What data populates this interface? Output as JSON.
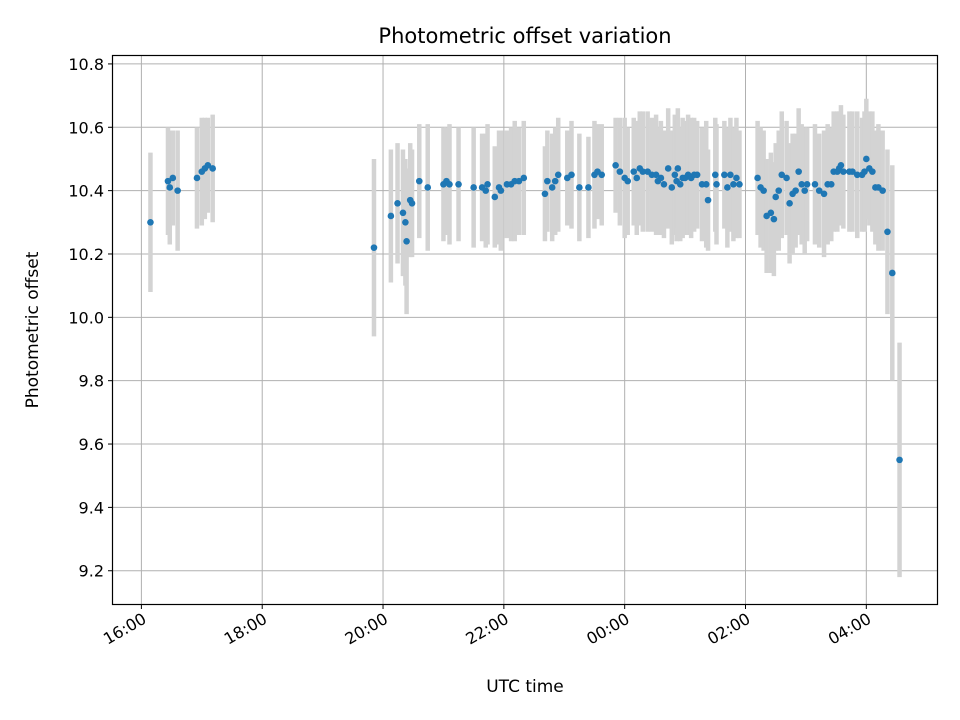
{
  "chart_data": {
    "type": "scatter",
    "title": "Photometric offset variation",
    "xlabel": "UTC time",
    "ylabel": "Photometric offset",
    "x_unit": "hours",
    "x_ticks": [
      {
        "value": 16,
        "label": "16:00"
      },
      {
        "value": 18,
        "label": "18:00"
      },
      {
        "value": 20,
        "label": "20:00"
      },
      {
        "value": 22,
        "label": "22:00"
      },
      {
        "value": 24,
        "label": "00:00"
      },
      {
        "value": 26,
        "label": "02:00"
      },
      {
        "value": 28,
        "label": "04:00"
      }
    ],
    "y_ticks": [
      "9.2",
      "9.4",
      "9.6",
      "9.8",
      "10.0",
      "10.2",
      "10.4",
      "10.6",
      "10.8"
    ],
    "xlim": [
      15.53,
      29.17
    ],
    "ylim": [
      9.095,
      10.825
    ],
    "grid": true,
    "colors": {
      "point": "#1f77b4",
      "errorbar": "#d3d3d3",
      "grid": "#b0b0b0"
    },
    "points": [
      [
        16.15,
        10.3,
        0.22
      ],
      [
        16.44,
        10.43,
        0.17
      ],
      [
        16.47,
        10.41,
        0.18
      ],
      [
        16.52,
        10.44,
        0.15
      ],
      [
        16.6,
        10.4,
        0.19
      ],
      [
        16.92,
        10.44,
        0.16
      ],
      [
        17.0,
        10.46,
        0.17
      ],
      [
        17.05,
        10.47,
        0.16
      ],
      [
        17.1,
        10.48,
        0.15
      ],
      [
        17.18,
        10.47,
        0.17
      ],
      [
        19.85,
        10.22,
        0.28
      ],
      [
        20.13,
        10.32,
        0.21
      ],
      [
        20.24,
        10.36,
        0.19
      ],
      [
        20.33,
        10.33,
        0.2
      ],
      [
        20.37,
        10.3,
        0.2
      ],
      [
        20.39,
        10.24,
        0.23
      ],
      [
        20.45,
        10.37,
        0.18
      ],
      [
        20.48,
        10.36,
        0.17
      ],
      [
        20.6,
        10.43,
        0.18
      ],
      [
        20.74,
        10.41,
        0.2
      ],
      [
        21.0,
        10.42,
        0.18
      ],
      [
        21.05,
        10.43,
        0.17
      ],
      [
        21.1,
        10.42,
        0.19
      ],
      [
        21.25,
        10.42,
        0.18
      ],
      [
        21.5,
        10.41,
        0.19
      ],
      [
        21.64,
        10.41,
        0.17
      ],
      [
        21.7,
        10.4,
        0.18
      ],
      [
        21.73,
        10.42,
        0.19
      ],
      [
        21.85,
        10.38,
        0.16
      ],
      [
        21.92,
        10.41,
        0.18
      ],
      [
        21.95,
        10.4,
        0.19
      ],
      [
        22.05,
        10.42,
        0.17
      ],
      [
        22.12,
        10.42,
        0.18
      ],
      [
        22.18,
        10.43,
        0.19
      ],
      [
        22.25,
        10.43,
        0.17
      ],
      [
        22.33,
        10.44,
        0.18
      ],
      [
        22.68,
        10.39,
        0.15
      ],
      [
        22.72,
        10.43,
        0.16
      ],
      [
        22.8,
        10.41,
        0.17
      ],
      [
        22.85,
        10.43,
        0.17
      ],
      [
        22.9,
        10.45,
        0.18
      ],
      [
        23.05,
        10.44,
        0.15
      ],
      [
        23.12,
        10.45,
        0.17
      ],
      [
        23.25,
        10.41,
        0.17
      ],
      [
        23.4,
        10.41,
        0.16
      ],
      [
        23.5,
        10.45,
        0.17
      ],
      [
        23.55,
        10.46,
        0.15
      ],
      [
        23.62,
        10.45,
        0.16
      ],
      [
        23.85,
        10.48,
        0.15
      ],
      [
        23.92,
        10.46,
        0.17
      ],
      [
        24.0,
        10.44,
        0.19
      ],
      [
        24.05,
        10.43,
        0.17
      ],
      [
        24.15,
        10.46,
        0.17
      ],
      [
        24.2,
        10.44,
        0.18
      ],
      [
        24.25,
        10.47,
        0.18
      ],
      [
        24.3,
        10.46,
        0.19
      ],
      [
        24.38,
        10.46,
        0.19
      ],
      [
        24.45,
        10.45,
        0.18
      ],
      [
        24.52,
        10.45,
        0.19
      ],
      [
        24.55,
        10.43,
        0.17
      ],
      [
        24.6,
        10.44,
        0.18
      ],
      [
        24.65,
        10.42,
        0.17
      ],
      [
        24.72,
        10.47,
        0.19
      ],
      [
        24.78,
        10.41,
        0.18
      ],
      [
        24.83,
        10.45,
        0.19
      ],
      [
        24.86,
        10.43,
        0.19
      ],
      [
        24.88,
        10.47,
        0.19
      ],
      [
        24.92,
        10.42,
        0.18
      ],
      [
        24.96,
        10.44,
        0.19
      ],
      [
        25.0,
        10.44,
        0.18
      ],
      [
        25.05,
        10.45,
        0.19
      ],
      [
        25.1,
        10.44,
        0.19
      ],
      [
        25.15,
        10.45,
        0.18
      ],
      [
        25.2,
        10.45,
        0.17
      ],
      [
        25.28,
        10.42,
        0.18
      ],
      [
        25.35,
        10.42,
        0.2
      ],
      [
        25.38,
        10.37,
        0.16
      ],
      [
        25.5,
        10.45,
        0.18
      ],
      [
        25.52,
        10.42,
        0.19
      ],
      [
        25.65,
        10.45,
        0.17
      ],
      [
        25.7,
        10.41,
        0.19
      ],
      [
        25.75,
        10.45,
        0.18
      ],
      [
        25.8,
        10.42,
        0.18
      ],
      [
        25.85,
        10.44,
        0.19
      ],
      [
        25.9,
        10.42,
        0.17
      ],
      [
        26.2,
        10.44,
        0.18
      ],
      [
        26.25,
        10.41,
        0.19
      ],
      [
        26.3,
        10.4,
        0.19
      ],
      [
        26.35,
        10.32,
        0.18
      ],
      [
        26.42,
        10.33,
        0.19
      ],
      [
        26.47,
        10.31,
        0.18
      ],
      [
        26.5,
        10.38,
        0.17
      ],
      [
        26.55,
        10.4,
        0.19
      ],
      [
        26.6,
        10.45,
        0.2
      ],
      [
        26.68,
        10.44,
        0.18
      ],
      [
        26.73,
        10.36,
        0.19
      ],
      [
        26.78,
        10.39,
        0.19
      ],
      [
        26.83,
        10.4,
        0.18
      ],
      [
        26.88,
        10.46,
        0.2
      ],
      [
        26.93,
        10.42,
        0.19
      ],
      [
        26.98,
        10.4,
        0.2
      ],
      [
        27.02,
        10.42,
        0.18
      ],
      [
        27.15,
        10.42,
        0.19
      ],
      [
        27.22,
        10.4,
        0.18
      ],
      [
        27.3,
        10.39,
        0.2
      ],
      [
        27.36,
        10.42,
        0.19
      ],
      [
        27.42,
        10.42,
        0.18
      ],
      [
        27.46,
        10.46,
        0.19
      ],
      [
        27.52,
        10.46,
        0.19
      ],
      [
        27.55,
        10.47,
        0.18
      ],
      [
        27.58,
        10.48,
        0.19
      ],
      [
        27.62,
        10.46,
        0.18
      ],
      [
        27.72,
        10.46,
        0.19
      ],
      [
        27.77,
        10.46,
        0.19
      ],
      [
        27.85,
        10.45,
        0.2
      ],
      [
        27.93,
        10.45,
        0.18
      ],
      [
        27.97,
        10.46,
        0.19
      ],
      [
        28.0,
        10.5,
        0.19
      ],
      [
        28.05,
        10.47,
        0.18
      ],
      [
        28.1,
        10.46,
        0.19
      ],
      [
        28.15,
        10.41,
        0.18
      ],
      [
        28.2,
        10.41,
        0.2
      ],
      [
        28.27,
        10.4,
        0.19
      ],
      [
        28.35,
        10.27,
        0.26
      ],
      [
        28.43,
        10.14,
        0.34
      ],
      [
        28.55,
        9.55,
        0.37
      ]
    ]
  }
}
